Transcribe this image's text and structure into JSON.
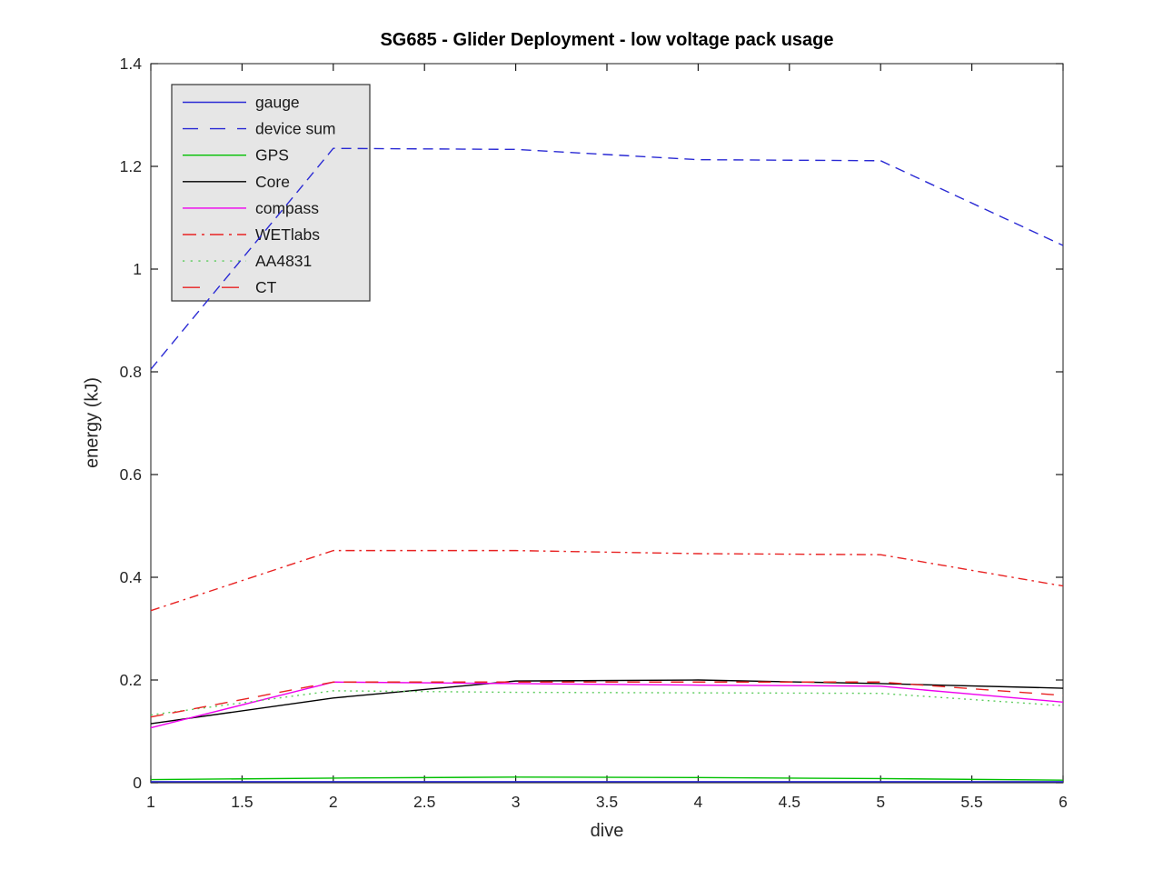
{
  "chart_data": {
    "type": "line",
    "title": "SG685 - Glider Deployment - low voltage pack usage",
    "xlabel": "dive",
    "ylabel": "energy (kJ)",
    "xlim": [
      1,
      6
    ],
    "ylim": [
      0,
      1.4
    ],
    "xticks": [
      1,
      1.5,
      2,
      2.5,
      3,
      3.5,
      4,
      4.5,
      5,
      5.5,
      6
    ],
    "xtick_labels": [
      "1",
      "1.5",
      "2",
      "2.5",
      "3",
      "3.5",
      "4",
      "4.5",
      "5",
      "5.5",
      "6"
    ],
    "yticks": [
      0,
      0.2,
      0.4,
      0.6,
      0.8,
      1,
      1.2,
      1.4
    ],
    "ytick_labels": [
      "0",
      "0.2",
      "0.4",
      "0.6",
      "0.8",
      "1",
      "1.2",
      "1.4"
    ],
    "grid": false,
    "legend_position": "upper-left",
    "x": [
      1,
      2,
      3,
      4,
      5,
      6
    ],
    "series": [
      {
        "name": "gauge",
        "color": "#2a2ad4",
        "style": "solid",
        "values": [
          0.002,
          0.002,
          0.002,
          0.002,
          0.002,
          0.002
        ]
      },
      {
        "name": "device sum",
        "color": "#2a2ad4",
        "style": "dashed",
        "values": [
          0.805,
          1.235,
          1.233,
          1.213,
          1.211,
          1.046
        ]
      },
      {
        "name": "GPS",
        "color": "#00c000",
        "style": "solid",
        "values": [
          0.006,
          0.009,
          0.011,
          0.01,
          0.008,
          0.005
        ]
      },
      {
        "name": "Core",
        "color": "#000000",
        "style": "solid",
        "values": [
          0.115,
          0.165,
          0.198,
          0.2,
          0.193,
          0.184
        ]
      },
      {
        "name": "compass",
        "color": "#ee00ee",
        "style": "solid",
        "values": [
          0.107,
          0.196,
          0.193,
          0.19,
          0.188,
          0.157
        ]
      },
      {
        "name": "WETlabs",
        "color": "#e82222",
        "style": "dashdot",
        "values": [
          0.335,
          0.452,
          0.452,
          0.446,
          0.444,
          0.383
        ]
      },
      {
        "name": "AA4831",
        "color": "#5ccc5c",
        "style": "dotted",
        "values": [
          0.132,
          0.179,
          0.176,
          0.175,
          0.174,
          0.15
        ]
      },
      {
        "name": "CT",
        "color": "#e82222",
        "style": "longdash",
        "values": [
          0.128,
          0.196,
          0.196,
          0.196,
          0.196,
          0.17
        ]
      }
    ],
    "colors": {
      "axis": "#1a1a1a",
      "tick_text": "#262626",
      "legend_bg": "#e6e6e6",
      "legend_border": "#333333",
      "background": "#ffffff"
    }
  }
}
